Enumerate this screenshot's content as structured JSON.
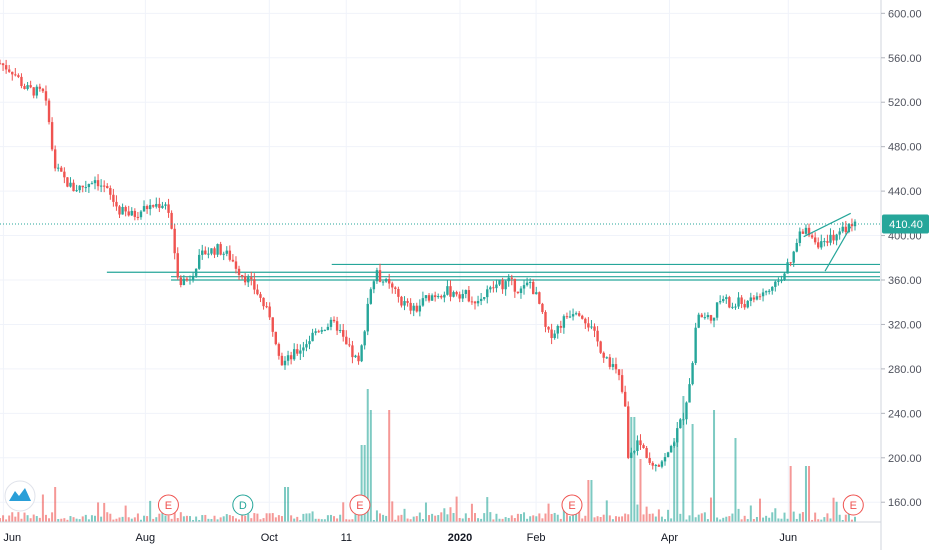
{
  "chart_data": {
    "type": "candlestick",
    "symbol_last_price": "410.40",
    "y_ticks": [
      "600.00",
      "560.00",
      "520.00",
      "480.00",
      "440.00",
      "400.00",
      "360.00",
      "320.00",
      "280.00",
      "240.00",
      "200.00",
      "160.00"
    ],
    "y_tick_values": [
      600,
      560,
      520,
      480,
      440,
      400,
      360,
      320,
      280,
      240,
      200,
      160
    ],
    "x_ticks": [
      {
        "label": "Jun",
        "t": 0.004
      },
      {
        "label": "Aug",
        "t": 0.17
      },
      {
        "label": "Oct",
        "t": 0.315
      },
      {
        "label": "11",
        "t": 0.405
      },
      {
        "label": "2020",
        "t": 0.538
      },
      {
        "label": "Feb",
        "t": 0.627
      },
      {
        "label": "Apr",
        "t": 0.783
      },
      {
        "label": "Jun",
        "t": 0.922
      }
    ],
    "ylim": [
      117,
      612
    ],
    "last_price": 410.4,
    "colors": {
      "up": "#26a69a",
      "down": "#ef5350",
      "line": "#26a69a",
      "last": "#26a69a",
      "event": "#ef5350",
      "dividend": "#26a69a"
    },
    "events": [
      {
        "label": "E",
        "t": 0.197,
        "kind": "earnings"
      },
      {
        "label": "D",
        "t": 0.284,
        "kind": "dividend"
      },
      {
        "label": "E",
        "t": 0.421,
        "kind": "earnings"
      },
      {
        "label": "E",
        "t": 0.669,
        "kind": "earnings"
      },
      {
        "label": "E",
        "t": 0.998,
        "kind": "earnings"
      }
    ],
    "anchors": [
      [
        0.0,
        555
      ],
      [
        0.015,
        548
      ],
      [
        0.03,
        532
      ],
      [
        0.05,
        528
      ],
      [
        0.058,
        505
      ],
      [
        0.062,
        465
      ],
      [
        0.07,
        455
      ],
      [
        0.085,
        442
      ],
      [
        0.1,
        445
      ],
      [
        0.11,
        452
      ],
      [
        0.125,
        440
      ],
      [
        0.14,
        422
      ],
      [
        0.155,
        418
      ],
      [
        0.17,
        425
      ],
      [
        0.185,
        428
      ],
      [
        0.195,
        430
      ],
      [
        0.2,
        410
      ],
      [
        0.205,
        375
      ],
      [
        0.21,
        360
      ],
      [
        0.22,
        360
      ],
      [
        0.23,
        375
      ],
      [
        0.24,
        385
      ],
      [
        0.255,
        388
      ],
      [
        0.27,
        380
      ],
      [
        0.28,
        368
      ],
      [
        0.29,
        360
      ],
      [
        0.3,
        350
      ],
      [
        0.31,
        335
      ],
      [
        0.32,
        315
      ],
      [
        0.33,
        285
      ],
      [
        0.34,
        290
      ],
      [
        0.36,
        305
      ],
      [
        0.37,
        315
      ],
      [
        0.385,
        320
      ],
      [
        0.395,
        318
      ],
      [
        0.405,
        300
      ],
      [
        0.415,
        290
      ],
      [
        0.42,
        283
      ],
      [
        0.425,
        310
      ],
      [
        0.432,
        350
      ],
      [
        0.44,
        365
      ],
      [
        0.45,
        358
      ],
      [
        0.46,
        350
      ],
      [
        0.47,
        340
      ],
      [
        0.485,
        332
      ],
      [
        0.5,
        345
      ],
      [
        0.52,
        350
      ],
      [
        0.54,
        348
      ],
      [
        0.56,
        342
      ],
      [
        0.58,
        355
      ],
      [
        0.595,
        358
      ],
      [
        0.61,
        350
      ],
      [
        0.62,
        358
      ],
      [
        0.63,
        340
      ],
      [
        0.64,
        310
      ],
      [
        0.65,
        315
      ],
      [
        0.665,
        330
      ],
      [
        0.675,
        335
      ],
      [
        0.685,
        325
      ],
      [
        0.695,
        310
      ],
      [
        0.705,
        295
      ],
      [
        0.715,
        285
      ],
      [
        0.725,
        270
      ],
      [
        0.732,
        240
      ],
      [
        0.735,
        195
      ],
      [
        0.745,
        215
      ],
      [
        0.755,
        205
      ],
      [
        0.765,
        195
      ],
      [
        0.78,
        200
      ],
      [
        0.79,
        220
      ],
      [
        0.8,
        240
      ],
      [
        0.81,
        285
      ],
      [
        0.815,
        330
      ],
      [
        0.825,
        325
      ],
      [
        0.835,
        330
      ],
      [
        0.845,
        345
      ],
      [
        0.855,
        335
      ],
      [
        0.865,
        340
      ],
      [
        0.875,
        338
      ],
      [
        0.885,
        345
      ],
      [
        0.895,
        350
      ],
      [
        0.905,
        350
      ],
      [
        0.91,
        360
      ],
      [
        0.925,
        375
      ],
      [
        0.935,
        400
      ],
      [
        0.945,
        405
      ],
      [
        0.955,
        395
      ],
      [
        0.965,
        390
      ],
      [
        0.975,
        400
      ],
      [
        0.985,
        405
      ],
      [
        1.0,
        410
      ]
    ],
    "spikes": [
      [
        0.43,
        0.95
      ],
      [
        0.434,
        0.8
      ],
      [
        0.425,
        0.55
      ],
      [
        0.455,
        0.8
      ],
      [
        0.74,
        0.75
      ],
      [
        0.86,
        0.6
      ],
      [
        0.835,
        0.8
      ],
      [
        0.8,
        0.9
      ],
      [
        0.81,
        0.7
      ],
      [
        0.79,
        0.6
      ],
      [
        0.925,
        0.4
      ],
      [
        0.945,
        0.4
      ],
      [
        0.335,
        0.25
      ],
      [
        0.065,
        0.25
      ],
      [
        0.69,
        0.3
      ],
      [
        0.75,
        0.45
      ]
    ],
    "h_lines": [
      {
        "price": 374,
        "t0": 0.388,
        "t1": 1.04
      },
      {
        "price": 367,
        "t0": 0.125,
        "t1": 1.04
      },
      {
        "price": 363,
        "t0": 0.2,
        "t1": 1.04
      },
      {
        "price": 360,
        "t0": 0.2,
        "t1": 1.04
      }
    ],
    "trendlines": [
      {
        "t0": 0.94,
        "p0": 399,
        "t1": 0.995,
        "p1": 420
      },
      {
        "t0": 0.965,
        "p0": 368,
        "t1": 0.995,
        "p1": 408
      }
    ]
  }
}
